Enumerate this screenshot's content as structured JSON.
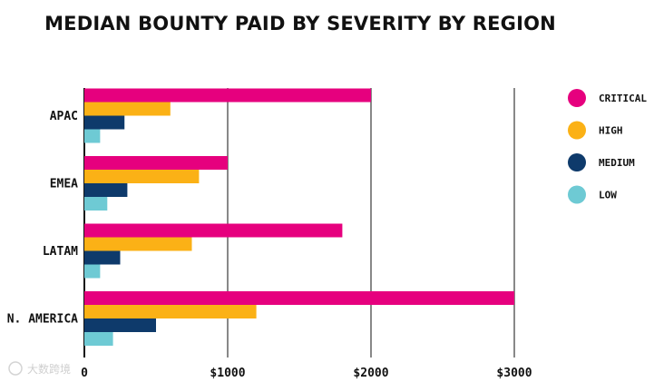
{
  "chart_data": {
    "type": "bar",
    "orientation": "horizontal",
    "title": "MEDIAN BOUNTY PAID BY SEVERITY BY REGION",
    "categories": [
      "APAC",
      "EMEA",
      "LATAM",
      "N. AMERICA"
    ],
    "series": [
      {
        "name": "CRITICAL",
        "color": "#E6007E",
        "values": [
          2000,
          1000,
          1800,
          3000
        ]
      },
      {
        "name": "HIGH",
        "color": "#FBB116",
        "values": [
          600,
          800,
          750,
          1200
        ]
      },
      {
        "name": "MEDIUM",
        "color": "#0E3A6B",
        "values": [
          280,
          300,
          250,
          500
        ]
      },
      {
        "name": "LOW",
        "color": "#6ECAD4",
        "values": [
          110,
          160,
          110,
          200
        ]
      }
    ],
    "xlim": [
      0,
      3000
    ],
    "xticks": [
      0,
      1000,
      2000,
      3000
    ],
    "xtick_labels": [
      "0",
      "$1000",
      "$2000",
      "$3000"
    ],
    "grid": "vertical lines",
    "legend_position": "right"
  },
  "watermark": "大数跨境"
}
